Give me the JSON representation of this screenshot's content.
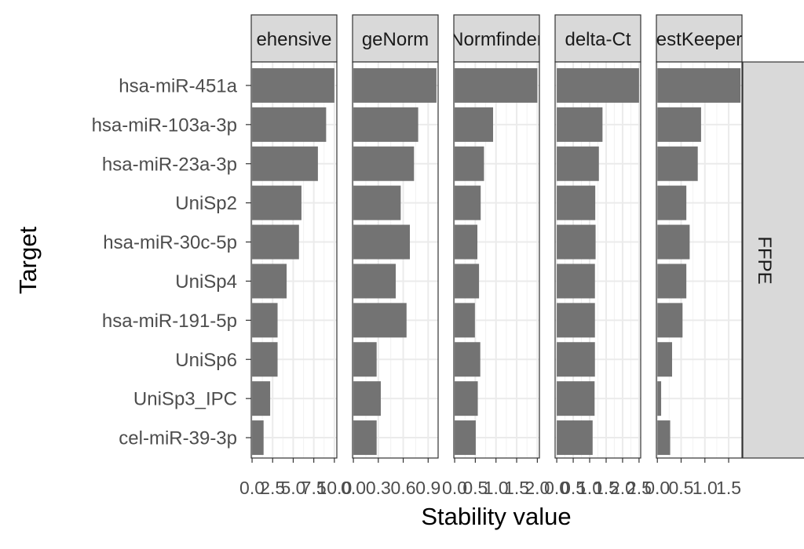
{
  "chart_data": {
    "type": "bar",
    "orientation": "horizontal",
    "facet_layout": "columns",
    "xlabel": "Stability value",
    "ylabel": "Target",
    "row_strip": "FFPE",
    "bar_color": "#737373",
    "strip_fill": "#d9d9d9",
    "grid": true,
    "categories": [
      "hsa-miR-451a",
      "hsa-miR-103a-3p",
      "hsa-miR-23a-3p",
      "UniSp2",
      "hsa-miR-30c-5p",
      "UniSp4",
      "hsa-miR-191-5p",
      "UniSp6",
      "UniSp3_IPC",
      "cel-miR-39-3p"
    ],
    "panels": [
      {
        "strip_label": "ehensive",
        "xlim": [
          -0.1,
          10.3
        ],
        "ticks": [
          0,
          2.5,
          5,
          7.5,
          10
        ],
        "tick_labels": [
          "0.0",
          "2.5",
          "5.0",
          "7.5",
          "10.0"
        ],
        "values": [
          10,
          9,
          8,
          6,
          5.7,
          4.2,
          3.1,
          3.1,
          2.2,
          1.4
        ]
      },
      {
        "strip_label": "geNorm",
        "xlim": [
          -0.01,
          1.02
        ],
        "ticks": [
          0,
          0.3,
          0.6,
          0.9
        ],
        "tick_labels": [
          "0.0",
          "0.3",
          "0.6",
          "0.9"
        ],
        "values": [
          1.0,
          0.78,
          0.73,
          0.57,
          0.68,
          0.51,
          0.64,
          0.28,
          0.33,
          0.28
        ]
      },
      {
        "strip_label": "Normfinder",
        "xlim": [
          -0.02,
          2.05
        ],
        "ticks": [
          0,
          0.5,
          1,
          1.5,
          2
        ],
        "tick_labels": [
          "0.0",
          "0.5",
          "1.0",
          "1.5",
          "2.0"
        ],
        "values": [
          2.0,
          0.93,
          0.71,
          0.63,
          0.55,
          0.59,
          0.49,
          0.62,
          0.56,
          0.51
        ]
      },
      {
        "strip_label": "delta-Ct",
        "xlim": [
          -0.05,
          2.55
        ],
        "ticks": [
          0,
          0.5,
          1,
          1.5,
          2,
          2.5
        ],
        "tick_labels": [
          "0.0",
          "0.5",
          "1.0",
          "1.5",
          "2.0",
          "2.5"
        ],
        "values": [
          2.5,
          1.39,
          1.28,
          1.17,
          1.18,
          1.16,
          1.16,
          1.16,
          1.15,
          1.09
        ]
      },
      {
        "strip_label": "estKeeper",
        "xlim": [
          -0.02,
          1.78
        ],
        "ticks": [
          0,
          0.5,
          1,
          1.5
        ],
        "tick_labels": [
          "0.0",
          "0.5",
          "1.0",
          "1.5"
        ],
        "values": [
          1.75,
          0.92,
          0.85,
          0.61,
          0.68,
          0.61,
          0.53,
          0.31,
          0.08,
          0.27
        ]
      }
    ]
  }
}
